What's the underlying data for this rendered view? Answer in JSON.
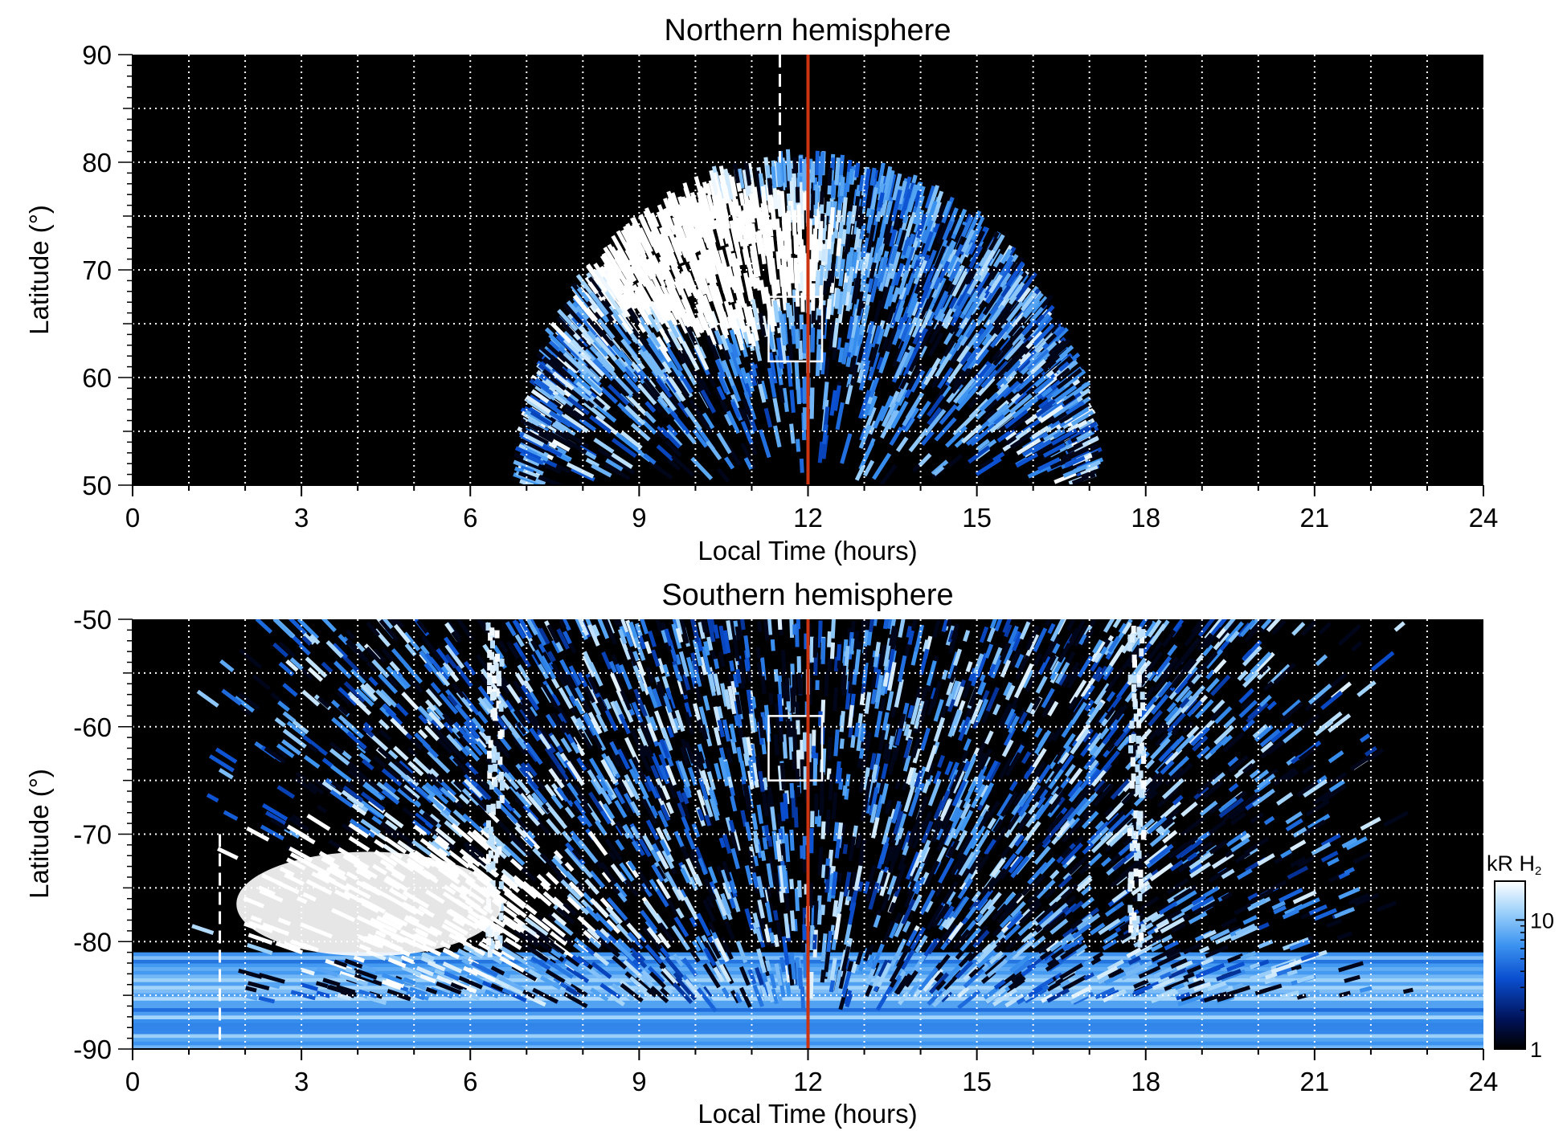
{
  "chart_data": [
    {
      "type": "heatmap",
      "title": "Northern hemisphere",
      "xlabel": "Local Time (hours)",
      "ylabel": "Latitude (°)",
      "xlim": [
        0,
        24
      ],
      "ylim": [
        50,
        90
      ],
      "x_ticks": [
        "0",
        "3",
        "6",
        "9",
        "12",
        "15",
        "18",
        "21",
        "24"
      ],
      "y_ticks": [
        "50",
        "60",
        "70",
        "80",
        "90"
      ],
      "grid": "dotted, every 1 hour and every 5°",
      "red_line_local_time": 12,
      "dashed_line_local_time": 11.5,
      "dashed_line_latitude_range": [
        80,
        90
      ],
      "box": {
        "local_time": [
          11.3,
          12.25
        ],
        "latitude": [
          61.5,
          67.5
        ]
      },
      "bright_region": {
        "local_time_center": 10.2,
        "latitude_center": 71.5
      },
      "emission_coverage": {
        "local_time": [
          7,
          17
        ],
        "latitude_top": 80
      }
    },
    {
      "type": "heatmap",
      "title": "Southern hemisphere",
      "xlabel": "Local Time (hours)",
      "ylabel": "Latitude (°)",
      "xlim": [
        0,
        24
      ],
      "ylim": [
        -90,
        -50
      ],
      "x_ticks": [
        "0",
        "3",
        "6",
        "9",
        "12",
        "15",
        "18",
        "21",
        "24"
      ],
      "y_ticks": [
        "-50",
        "-60",
        "-70",
        "-80",
        "-90"
      ],
      "grid": "dotted, every 1 hour and every 5°",
      "red_line_local_time": 12,
      "dashed_line_local_time": 1.55,
      "dashed_line_latitude_range": [
        -90,
        -70
      ],
      "box": {
        "local_time": [
          11.3,
          12.25
        ],
        "latitude": [
          -65,
          -59
        ]
      },
      "bright_region": {
        "local_time_center": 4.2,
        "latitude_center": -76.5
      },
      "emission_coverage": {
        "local_time": [
          5.5,
          19
        ],
        "latitude_edge": -81
      }
    }
  ],
  "colorbar": {
    "label_main": "kR H",
    "label_sub": "2",
    "scale": "log",
    "range": [
      1,
      20
    ],
    "tick_labels": [
      "1",
      "10"
    ],
    "tick_values": [
      1,
      10
    ],
    "colors": [
      "#000000",
      "#00135a",
      "#0a4fd0",
      "#3c94f0",
      "#9fd2fb",
      "#ffffff"
    ]
  },
  "colors": {
    "sun_line": "#cc3311",
    "background": "#000000",
    "grid": "#ffffff"
  }
}
